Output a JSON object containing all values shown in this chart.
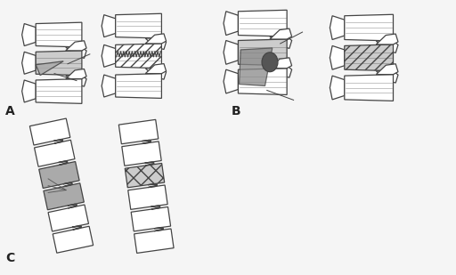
{
  "background_color": "#f5f5f5",
  "fig_width": 5.12,
  "fig_height": 3.09,
  "dpi": 100,
  "label_A": "A",
  "label_B": "B",
  "label_C": "C",
  "label_fontsize": 10,
  "label_color": "#222222",
  "spine_ec": "#444444",
  "spine_lw": 0.9,
  "gray_dark": "#888888",
  "gray_mid": "#aaaaaa",
  "gray_light": "#cccccc",
  "white": "#ffffff"
}
